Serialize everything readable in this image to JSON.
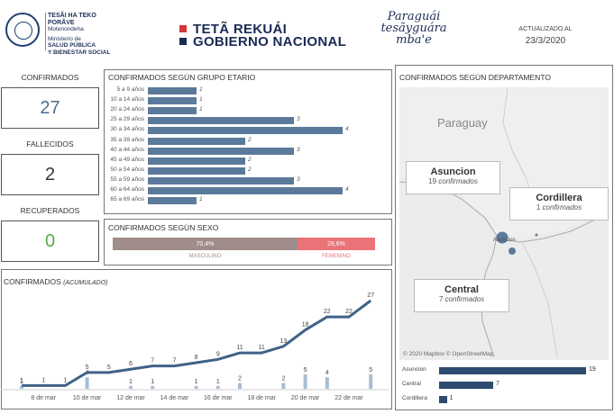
{
  "header": {
    "ministry_lines": [
      "TESÃI HA TEKO",
      "PORÃVE",
      "Motenondeha",
      "Ministerio de",
      "SALUD PÚBLICA",
      "Y BIENESTAR SOCIAL"
    ],
    "gov_line1": "TETÃ REKUÁI",
    "gov_line2": "GOBIERNO NACIONAL",
    "slogan": [
      "Paraguái",
      "tesãyguára",
      "mba'e"
    ],
    "updated_label": "ACTUALIZADO AL",
    "updated_date": "23/3/2020"
  },
  "kpis": [
    {
      "label": "CONFIRMADOS",
      "value": "27",
      "color": "#4a6e8f"
    },
    {
      "label": "FALLECIDOS",
      "value": "2",
      "color": "#333333"
    },
    {
      "label": "RECUPERADOS",
      "value": "0",
      "color": "#5aa84a"
    }
  ],
  "age_panel_title": "CONFIRMADOS SEGÚN GRUPO ETARIO",
  "sex_panel_title": "CONFIRMADOS SEGÚN SEXO",
  "accum_panel_title": "CONFIRMADOS",
  "accum_panel_subtitle": "(ACUMULADO)",
  "dept_panel_title": "CONFIRMADOS SEGÚN DEPARTAMENTO",
  "map": {
    "country_label": "Paraguay",
    "attribution": "© 2020 Mapbox © OpenStreetMap",
    "cards": [
      {
        "name": "Asuncion",
        "count": "19",
        "suffix": "confirmados"
      },
      {
        "name": "Cordillera",
        "count": "1",
        "suffix": "confirmados"
      },
      {
        "name": "Central",
        "count": "7",
        "suffix": "confirmados"
      }
    ]
  },
  "colors": {
    "bar": "#5b7a9b",
    "line": "#3f6287",
    "daily": "#a8bdd4",
    "male": "#a08c8a",
    "female": "#ea7377",
    "dept": "#2d4b6e"
  },
  "chart_data": [
    {
      "type": "bar",
      "orientation": "horizontal",
      "title": "CONFIRMADOS SEGÚN GRUPO ETARIO",
      "categories": [
        "5 a 9 años",
        "10 a 14 años",
        "20 a 24 años",
        "25 a 29 años",
        "30 a 34 años",
        "35 a 39 años",
        "40 a 44 años",
        "45 a 49 años",
        "50 a 54 años",
        "55 a 59 años",
        "60 a 64 años",
        "65 a 69 años"
      ],
      "values": [
        1,
        1,
        1,
        3,
        4,
        2,
        3,
        2,
        2,
        3,
        4,
        1
      ],
      "xlim": [
        0,
        4
      ]
    },
    {
      "type": "bar",
      "orientation": "stacked-100",
      "title": "CONFIRMADOS SEGÚN SEXO",
      "categories": [
        "MASCULINO",
        "FEMENINO"
      ],
      "values": [
        70.4,
        29.6
      ],
      "value_labels": [
        "70,4%",
        "29,6%"
      ]
    },
    {
      "type": "line",
      "title": "CONFIRMADOS",
      "subtitle": "(ACUMULADO)",
      "x_ticks": [
        "8 de mar",
        "10 de mar",
        "12 de mar",
        "14 de mar",
        "16 de mar",
        "18 de mar",
        "20 de mar",
        "22 de mar"
      ],
      "x": [
        "7 de mar",
        "8 de mar",
        "9 de mar",
        "10 de mar",
        "11 de mar",
        "12 de mar",
        "13 de mar",
        "14 de mar",
        "15 de mar",
        "16 de mar",
        "17 de mar",
        "18 de mar",
        "19 de mar",
        "20 de mar",
        "21 de mar",
        "22 de mar",
        "23 de mar"
      ],
      "series": [
        {
          "values": [
            1,
            1,
            1,
            5,
            5,
            6,
            7,
            7,
            8,
            9,
            11,
            11,
            13,
            18,
            22,
            22,
            27
          ]
        },
        {
          "values": [
            1,
            0,
            0,
            4,
            0,
            1,
            1,
            0,
            1,
            1,
            2,
            0,
            2,
            5,
            4,
            0,
            5
          ]
        }
      ],
      "daily_labels": [
        "1",
        "",
        "",
        "4",
        "",
        "1",
        "1",
        "",
        "1",
        "1",
        "2",
        "",
        "2",
        "5",
        "4",
        "",
        "5"
      ]
    },
    {
      "type": "bar",
      "orientation": "horizontal",
      "categories": [
        "Asuncion",
        "Central",
        "Cordillera"
      ],
      "values": [
        19,
        7,
        1
      ],
      "xlim": [
        0,
        19
      ]
    }
  ]
}
